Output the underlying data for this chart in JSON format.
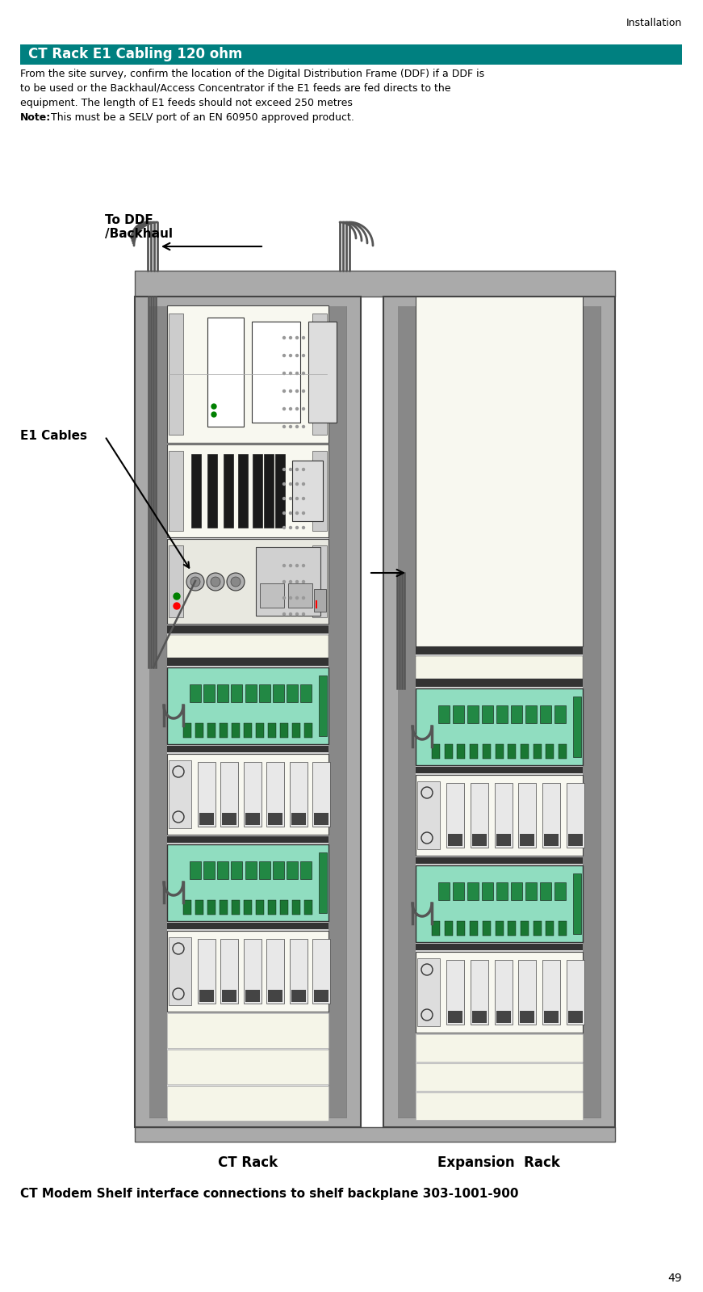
{
  "page_header": "Installation",
  "section_title": "CT Rack E1 Cabling 120 ohm",
  "section_title_bg": "#008080",
  "section_title_color": "#ffffff",
  "body_line1": "From the site survey, confirm the location of the Digital Distribution Frame (DDF) if a DDF is",
  "body_line2": "to be used or the Backhaul/Access Concentrator if the E1 feeds are fed directs to the",
  "body_line3": "equipment. The length of E1 feeds should not exceed 250 metres",
  "body_line4_bold": "Note:",
  "body_line4_normal": " This must be a SELV port of an EN 60950 approved product.",
  "label_ddf": "To DDF\n/Backhaul",
  "label_e1": "E1 Cables",
  "label_ct_rack": "CT Rack",
  "label_expansion": "Expansion  Rack",
  "footer_text": "CT Modem Shelf interface connections to shelf backplane 303-1001-900",
  "page_number": "49",
  "bg_color": "#ffffff",
  "teal_bg": "#008080",
  "rack_frame_color": "#999999",
  "rack_outer_dark": "#777777",
  "inner_bg": "#e8e8e8",
  "shelf_cream": "#f5f5e0",
  "modem_green": "#90ddc0",
  "cable_gray": "#555555",
  "card_dark": "#333333",
  "card_light": "#cccccc",
  "slot_bg": "#e0e0e0"
}
